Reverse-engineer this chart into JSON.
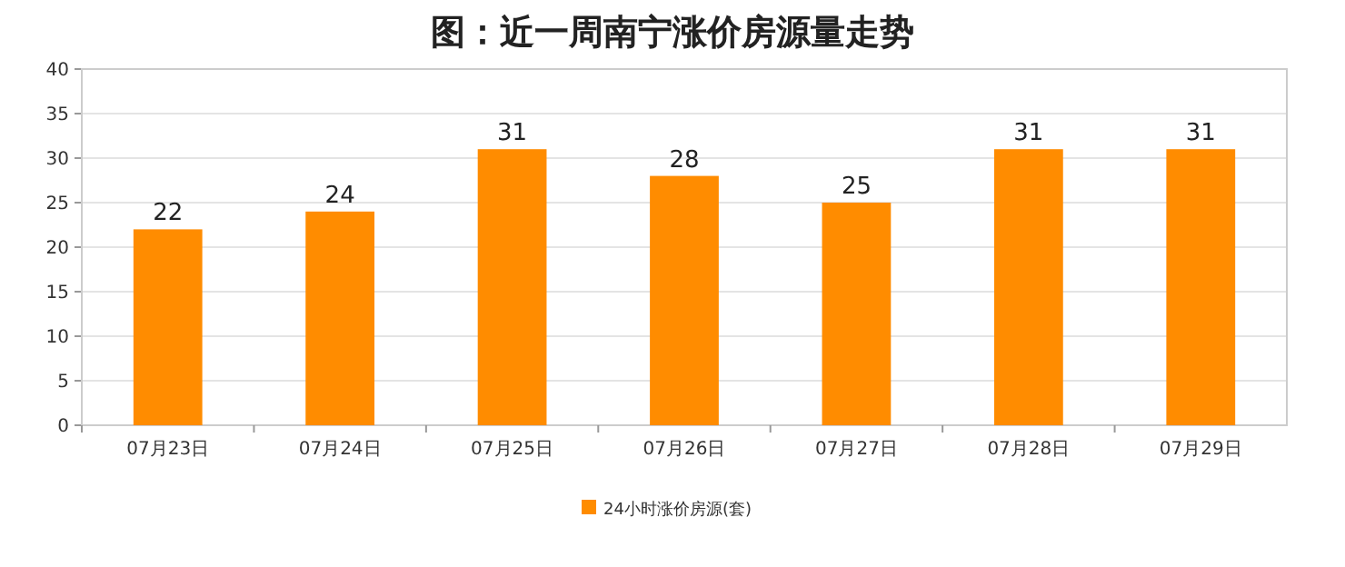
{
  "chart_data": {
    "type": "bar",
    "title": "图：近一周南宁涨价房源量走势",
    "categories": [
      "07月23日",
      "07月24日",
      "07月25日",
      "07月26日",
      "07月27日",
      "07月28日",
      "07月29日"
    ],
    "series": [
      {
        "name": "24小时涨价房源(套)",
        "color": "#ff8c00",
        "values": [
          22,
          24,
          31,
          28,
          25,
          31,
          31
        ]
      }
    ],
    "ylim": [
      0,
      40
    ],
    "yticks": [
      0,
      5,
      10,
      15,
      20,
      25,
      30,
      35,
      40
    ],
    "grid": "y",
    "legend": "bottom",
    "data_labels": true
  }
}
